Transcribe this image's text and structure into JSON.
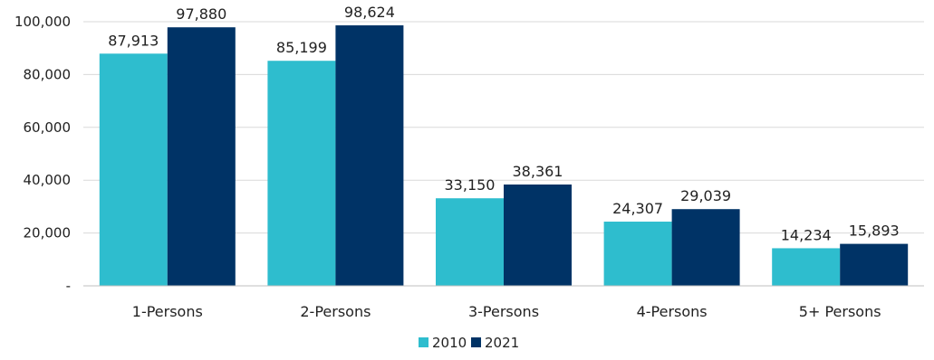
{
  "colors": {
    "2010": "#2EBDCE",
    "2021": "#003366",
    "grid": "#D9D9D9",
    "axis": "#BFBFBF",
    "title_fragment": "#1F5FA8"
  },
  "chart_data": {
    "type": "bar",
    "title": "",
    "xlabel": "",
    "ylabel": "",
    "categories": [
      "1-Persons",
      "2-Persons",
      "3-Persons",
      "4-Persons",
      "5+ Persons"
    ],
    "series": [
      {
        "name": "2010",
        "values": [
          87913,
          85199,
          33150,
          24307,
          14234
        ]
      },
      {
        "name": "2021",
        "values": [
          97880,
          98624,
          38361,
          29039,
          15893
        ]
      }
    ],
    "ylim": [
      0,
      100000
    ],
    "y_ticks": [
      0,
      20000,
      40000,
      60000,
      80000,
      100000
    ],
    "y_tick_labels": [
      "-",
      "20,000",
      "40,000",
      "60,000",
      "80,000",
      "100,000"
    ],
    "data_labels": [
      [
        "87,913",
        "85,199",
        "33,150",
        "24,307",
        "14,234"
      ],
      [
        "97,880",
        "98,624",
        "38,361",
        "29,039",
        "15,893"
      ]
    ],
    "grid": true,
    "legend_position": "bottom-center"
  }
}
